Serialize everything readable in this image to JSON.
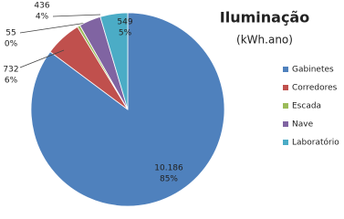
{
  "chart_data": {
    "type": "pie",
    "title": "Iluminação",
    "subtitle": "(kWh.ano)",
    "categories": [
      "Gabinetes",
      "Corredores",
      "Escada",
      "Nave",
      "Laboratório"
    ],
    "values": [
      10186,
      732,
      55,
      436,
      549
    ],
    "value_labels": [
      "10.186",
      "732",
      "55",
      "436",
      "549"
    ],
    "percent_labels": [
      "85%",
      "6%",
      "0%",
      "4%",
      "5%"
    ],
    "colors": [
      "#4f81bd",
      "#c0504d",
      "#9bbb59",
      "#8064a2",
      "#4bacc6"
    ],
    "legend": "right"
  }
}
